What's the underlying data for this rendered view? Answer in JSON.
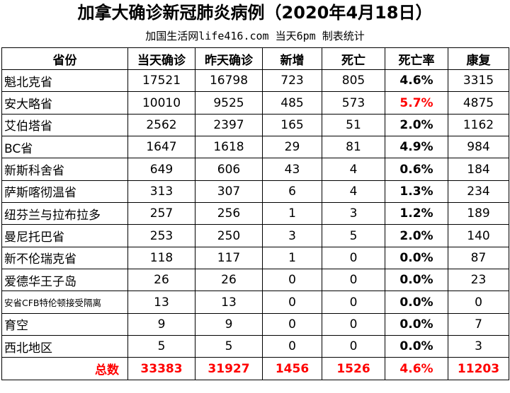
{
  "title": "加拿大确诊新冠肺炎病例（2020年4月18日）",
  "subtitle": "加国生活网life416.com 当天6pm 制表统计",
  "colors": {
    "highlight": "#ff0000",
    "border": "#000000"
  },
  "table": {
    "headers": [
      "省份",
      "当天确诊",
      "昨天确诊",
      "新增",
      "死亡",
      "死亡率",
      "康复"
    ],
    "rows": [
      [
        "魁北克省",
        "17521",
        "16798",
        "723",
        "805",
        "4.6%",
        "3315"
      ],
      [
        "安大略省",
        "10010",
        "9525",
        "485",
        "573",
        "5.7%",
        "4875"
      ],
      [
        "艾伯塔省",
        "2562",
        "2397",
        "165",
        "51",
        "2.0%",
        "1162"
      ],
      [
        "BC省",
        "1647",
        "1618",
        "29",
        "81",
        "4.9%",
        "984"
      ],
      [
        "新斯科舍省",
        "649",
        "606",
        "43",
        "4",
        "0.6%",
        "184"
      ],
      [
        "萨斯喀彻温省",
        "313",
        "307",
        "6",
        "4",
        "1.3%",
        "234"
      ],
      [
        "纽芬兰与拉布拉多",
        "257",
        "256",
        "1",
        "3",
        "1.2%",
        "189"
      ],
      [
        "曼尼托巴省",
        "253",
        "250",
        "3",
        "5",
        "2.0%",
        "140"
      ],
      [
        "新不伦瑞克省",
        "118",
        "117",
        "1",
        "0",
        "0.0%",
        "87"
      ],
      [
        "爱德华王子岛",
        "26",
        "26",
        "0",
        "0",
        "0.0%",
        "23"
      ],
      [
        "安省CFB特伦顿接受隔离",
        "13",
        "13",
        "0",
        "0",
        "0.0%",
        "0"
      ],
      [
        "育空",
        "9",
        "9",
        "0",
        "0",
        "0.0%",
        "7"
      ],
      [
        "西北地区",
        "5",
        "5",
        "0",
        "0",
        "0.0%",
        "3"
      ]
    ],
    "total": [
      "总数",
      "33383",
      "31927",
      "1456",
      "1526",
      "4.6%",
      "11203"
    ]
  }
}
